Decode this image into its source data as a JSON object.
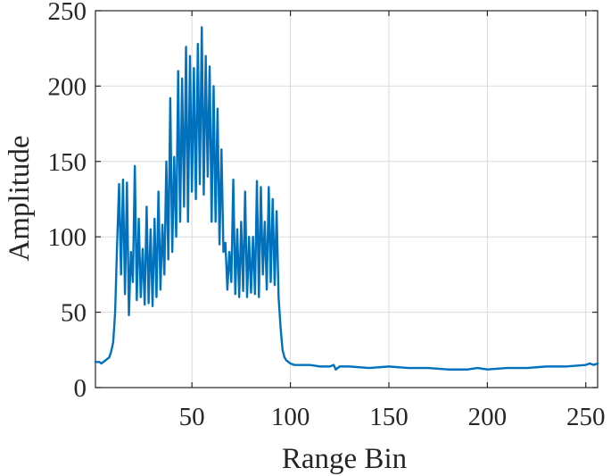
{
  "chart_data": {
    "type": "line",
    "xlabel": "Range Bin",
    "ylabel": "Amplitude",
    "xlim": [
      1,
      256
    ],
    "ylim": [
      0,
      250
    ],
    "xticks": [
      50,
      100,
      150,
      200,
      250
    ],
    "yticks": [
      0,
      50,
      100,
      150,
      200,
      250
    ],
    "xtick_labels": [
      "50",
      "100",
      "150",
      "200",
      "250"
    ],
    "ytick_labels": [
      "0",
      "50",
      "100",
      "150",
      "200",
      "250"
    ],
    "grid": true,
    "box": true,
    "series": [
      {
        "color": "#0072BD",
        "x": [
          1,
          2,
          3,
          4,
          5,
          6,
          7,
          8,
          9,
          10,
          11,
          12,
          13,
          14,
          15,
          16,
          17,
          18,
          19,
          20,
          21,
          22,
          23,
          24,
          25,
          26,
          27,
          28,
          29,
          30,
          31,
          32,
          33,
          34,
          35,
          36,
          37,
          38,
          39,
          40,
          41,
          42,
          43,
          44,
          45,
          46,
          47,
          48,
          49,
          50,
          51,
          52,
          53,
          54,
          55,
          56,
          57,
          58,
          59,
          60,
          61,
          62,
          63,
          64,
          65,
          66,
          67,
          68,
          69,
          70,
          71,
          72,
          73,
          74,
          75,
          76,
          77,
          78,
          79,
          80,
          81,
          82,
          83,
          84,
          85,
          86,
          87,
          88,
          89,
          90,
          91,
          92,
          93,
          94,
          95,
          96,
          97,
          98,
          100,
          102,
          105,
          110,
          115,
          120,
          122,
          123,
          125,
          130,
          140,
          150,
          160,
          170,
          180,
          190,
          195,
          200,
          210,
          220,
          230,
          240,
          250,
          252,
          254,
          256
        ],
        "y": [
          17,
          17,
          17,
          16,
          17,
          18,
          19,
          20,
          24,
          30,
          50,
          95,
          135,
          75,
          138,
          62,
          136,
          48,
          90,
          70,
          147,
          58,
          112,
          60,
          92,
          55,
          120,
          56,
          105,
          54,
          112,
          60,
          130,
          65,
          108,
          75,
          150,
          85,
          192,
          90,
          153,
          100,
          210,
          110,
          205,
          120,
          226,
          110,
          220,
          130,
          212,
          125,
          228,
          135,
          239,
          128,
          220,
          140,
          213,
          110,
          200,
          110,
          185,
          95,
          158,
          90,
          96,
          65,
          90,
          70,
          138,
          62,
          105,
          60,
          110,
          64,
          130,
          60,
          100,
          63,
          100,
          62,
          137,
          60,
          133,
          75,
          110,
          65,
          133,
          70,
          125,
          68,
          117,
          60,
          40,
          25,
          20,
          18,
          16,
          15,
          15,
          15,
          14,
          14,
          15,
          12,
          14,
          14,
          13,
          14,
          13,
          13,
          12,
          12,
          13,
          12,
          13,
          13,
          14,
          14,
          15,
          16,
          15,
          16
        ]
      }
    ]
  }
}
